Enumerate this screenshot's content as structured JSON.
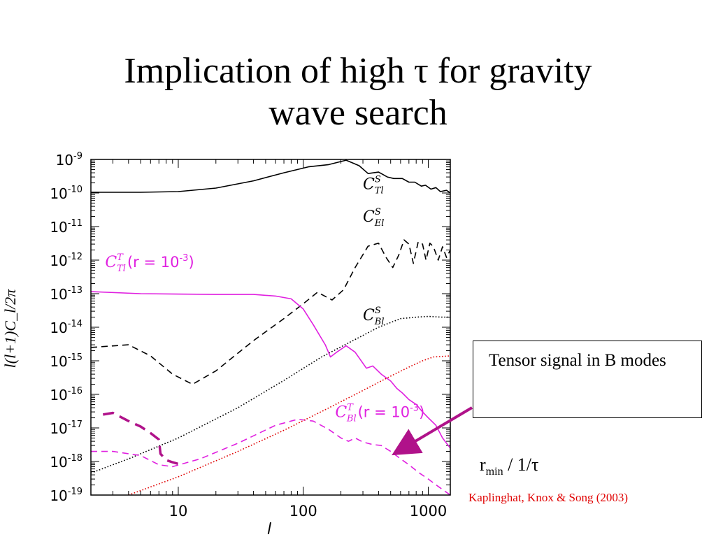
{
  "slide": {
    "title_line1": "Implication of high τ for gravity",
    "title_line2": "wave search",
    "callout_text": "Tensor signal in B modes",
    "rmin_main": "r",
    "rmin_sub": "min",
    "rmin_tail": " / 1/τ",
    "citation": "Kaplinghat, Knox & Song  (2003)",
    "colors": {
      "magenta": "#e020e0",
      "purple": "#b0128a",
      "red": "#e00000",
      "black": "#000000"
    }
  },
  "chart_data": {
    "type": "line",
    "scale": {
      "x": "log",
      "y": "log"
    },
    "xlim": [
      2,
      1500
    ],
    "ylim": [
      1e-19,
      1e-09
    ],
    "xlabel": "l",
    "ylabel": "l(l+1)C_l/2π",
    "x_ticks": [
      {
        "value": 10,
        "label": "10"
      },
      {
        "value": 100,
        "label": "100"
      },
      {
        "value": 1000,
        "label": "1000"
      }
    ],
    "y_ticks": [
      {
        "value": 1e-09,
        "mant": "10",
        "exp": "-9"
      },
      {
        "value": 1e-10,
        "mant": "10",
        "exp": "-10"
      },
      {
        "value": 1e-11,
        "mant": "10",
        "exp": "-11"
      },
      {
        "value": 1e-12,
        "mant": "10",
        "exp": "-12"
      },
      {
        "value": 1e-13,
        "mant": "10",
        "exp": "-13"
      },
      {
        "value": 1e-14,
        "mant": "10",
        "exp": "-14"
      },
      {
        "value": 1e-15,
        "mant": "10",
        "exp": "-15"
      },
      {
        "value": 1e-16,
        "mant": "10",
        "exp": "-16"
      },
      {
        "value": 1e-17,
        "mant": "10",
        "exp": "-17"
      },
      {
        "value": 1e-18,
        "mant": "10",
        "exp": "-18"
      },
      {
        "value": 1e-19,
        "mant": "10",
        "exp": "-19"
      }
    ],
    "series": [
      {
        "id": "cs-tl",
        "color": "#000000",
        "dash": "solid",
        "points": [
          [
            2,
            1.05e-10
          ],
          [
            5,
            1.05e-10
          ],
          [
            10,
            1.1e-10
          ],
          [
            20,
            1.4e-10
          ],
          [
            40,
            2.3e-10
          ],
          [
            70,
            4e-10
          ],
          [
            110,
            6e-10
          ],
          [
            160,
            7e-10
          ],
          [
            220,
            9.5e-10
          ],
          [
            280,
            6.5e-10
          ],
          [
            330,
            3.8e-10
          ],
          [
            400,
            4.2e-10
          ],
          [
            470,
            3e-10
          ],
          [
            530,
            2.7e-10
          ],
          [
            620,
            2.7e-10
          ],
          [
            700,
            2.1e-10
          ],
          [
            780,
            2.1e-10
          ],
          [
            880,
            1.6e-10
          ],
          [
            950,
            1.7e-10
          ],
          [
            1050,
            1.3e-10
          ],
          [
            1150,
            1.45e-10
          ],
          [
            1250,
            1.1e-10
          ],
          [
            1400,
            1.2e-10
          ],
          [
            1500,
            1e-10
          ]
        ]
      },
      {
        "id": "cs-el",
        "color": "#000000",
        "dash": "dashed",
        "points": [
          [
            2,
            2.5e-15
          ],
          [
            4,
            3e-15
          ],
          [
            6,
            1.4e-15
          ],
          [
            9,
            4e-16
          ],
          [
            13,
            2e-16
          ],
          [
            20,
            5e-16
          ],
          [
            40,
            4e-15
          ],
          [
            70,
            1.8e-14
          ],
          [
            100,
            5e-14
          ],
          [
            130,
            1.1e-13
          ],
          [
            170,
            6.5e-14
          ],
          [
            210,
            1.3e-13
          ],
          [
            260,
            6e-13
          ],
          [
            330,
            2.6e-12
          ],
          [
            400,
            3.2e-12
          ],
          [
            460,
            1.2e-12
          ],
          [
            520,
            6e-13
          ],
          [
            580,
            1.4e-12
          ],
          [
            640,
            4e-12
          ],
          [
            700,
            3e-12
          ],
          [
            760,
            8e-13
          ],
          [
            830,
            3.5e-12
          ],
          [
            900,
            3e-12
          ],
          [
            960,
            1e-12
          ],
          [
            1030,
            3.2e-12
          ],
          [
            1100,
            2.5e-12
          ],
          [
            1200,
            1e-12
          ],
          [
            1300,
            2.5e-12
          ],
          [
            1400,
            1.2e-12
          ],
          [
            1500,
            2e-12
          ]
        ]
      },
      {
        "id": "cs-bl",
        "color": "#000000",
        "dash": "dotted",
        "points": [
          [
            2,
            4.5e-19
          ],
          [
            4,
            1.2e-18
          ],
          [
            10,
            5e-18
          ],
          [
            30,
            4e-17
          ],
          [
            70,
            2.6e-16
          ],
          [
            140,
            1.3e-15
          ],
          [
            250,
            4e-15
          ],
          [
            400,
            1e-14
          ],
          [
            600,
            1.8e-14
          ],
          [
            800,
            2e-14
          ],
          [
            1000,
            2.1e-14
          ],
          [
            1300,
            2e-14
          ],
          [
            1500,
            2e-14
          ]
        ]
      },
      {
        "id": "ct-tl",
        "color": "#e020e0",
        "dash": "solid",
        "points": [
          [
            2,
            1.15e-13
          ],
          [
            5,
            1e-13
          ],
          [
            20,
            9.5e-14
          ],
          [
            40,
            9.5e-14
          ],
          [
            60,
            8.5e-14
          ],
          [
            80,
            7e-14
          ],
          [
            100,
            3.5e-14
          ],
          [
            120,
            1.2e-14
          ],
          [
            150,
            3e-15
          ],
          [
            165,
            1.3e-15
          ],
          [
            185,
            1.8e-15
          ],
          [
            220,
            2.8e-15
          ],
          [
            260,
            1.8e-15
          ],
          [
            320,
            6e-16
          ],
          [
            360,
            7e-16
          ],
          [
            420,
            4e-16
          ],
          [
            500,
            2.5e-16
          ],
          [
            560,
            1.5e-16
          ],
          [
            620,
            1.1e-16
          ],
          [
            700,
            7e-17
          ],
          [
            800,
            5e-17
          ],
          [
            900,
            3e-17
          ],
          [
            1000,
            2e-17
          ],
          [
            1150,
            1.2e-17
          ],
          [
            1300,
            5e-18
          ],
          [
            1500,
            2.5e-18
          ]
        ]
      },
      {
        "id": "ct-bl",
        "color": "#e020e0",
        "dash": "dashed",
        "points": [
          [
            2,
            2e-18
          ],
          [
            3,
            2e-18
          ],
          [
            5,
            1.5e-18
          ],
          [
            7,
            8e-19
          ],
          [
            9,
            7e-19
          ],
          [
            15,
            1.2e-18
          ],
          [
            30,
            3.5e-18
          ],
          [
            60,
            1.2e-17
          ],
          [
            90,
            1.8e-17
          ],
          [
            120,
            1.6e-17
          ],
          [
            160,
            9e-18
          ],
          [
            200,
            5e-18
          ],
          [
            230,
            4e-18
          ],
          [
            260,
            5e-18
          ],
          [
            300,
            3.8e-18
          ],
          [
            360,
            3.2e-18
          ],
          [
            420,
            3e-18
          ],
          [
            500,
            2e-18
          ],
          [
            600,
            1.2e-18
          ],
          [
            700,
            8e-19
          ],
          [
            850,
            4.5e-19
          ],
          [
            1000,
            3e-19
          ],
          [
            1200,
            1.8e-19
          ],
          [
            1500,
            1e-19
          ]
        ]
      },
      {
        "id": "red-bl",
        "color": "#e00000",
        "dash": "dotted",
        "points": [
          [
            4,
            1e-19
          ],
          [
            10,
            3.5e-19
          ],
          [
            30,
            2e-18
          ],
          [
            70,
            8.5e-18
          ],
          [
            150,
            3.5e-17
          ],
          [
            300,
            1.3e-16
          ],
          [
            500,
            3.5e-16
          ],
          [
            700,
            6.5e-16
          ],
          [
            900,
            1e-15
          ],
          [
            1100,
            1.3e-15
          ],
          [
            1300,
            1.35e-15
          ],
          [
            1500,
            1.4e-15
          ]
        ]
      },
      {
        "id": "purple-heavy",
        "color": "#b0128a",
        "dash": "heavy",
        "points": [
          [
            2.5,
            2.5e-17
          ],
          [
            3,
            2.8e-17
          ],
          [
            4,
            1.6e-17
          ],
          [
            5,
            1.1e-17
          ],
          [
            6,
            7e-18
          ],
          [
            7,
            4.5e-18
          ],
          [
            7.2,
            1.7e-18
          ],
          [
            8,
            1.1e-18
          ],
          [
            9,
            9.5e-19
          ],
          [
            10,
            8.5e-19
          ]
        ]
      }
    ],
    "labels": [
      {
        "id": "label-cs-tl",
        "sup": "S",
        "sub": "Tl",
        "color": "#000000",
        "at": [
          300,
          1.3e-10
        ]
      },
      {
        "id": "label-cs-el",
        "sup": "S",
        "sub": "El",
        "color": "#000000",
        "at": [
          300,
          1.4e-11
        ]
      },
      {
        "id": "label-cs-bl",
        "sup": "S",
        "sub": "Bl",
        "color": "#000000",
        "at": [
          300,
          1.6e-14
        ]
      },
      {
        "id": "label-ct-tl",
        "sup": "T",
        "sub": "Tl",
        "color": "#e020e0",
        "at": [
          2.6,
          6.2e-13
        ],
        "suffix": "(r = 10",
        "suffix_exp": "-3",
        "suffix_end": ")"
      },
      {
        "id": "label-ct-bl",
        "sup": "T",
        "sub": "Bl",
        "color": "#e020e0",
        "at": [
          180,
          2.1e-17
        ],
        "suffix": "(r = 10",
        "suffix_exp": "-3",
        "suffix_end": ")"
      }
    ]
  }
}
